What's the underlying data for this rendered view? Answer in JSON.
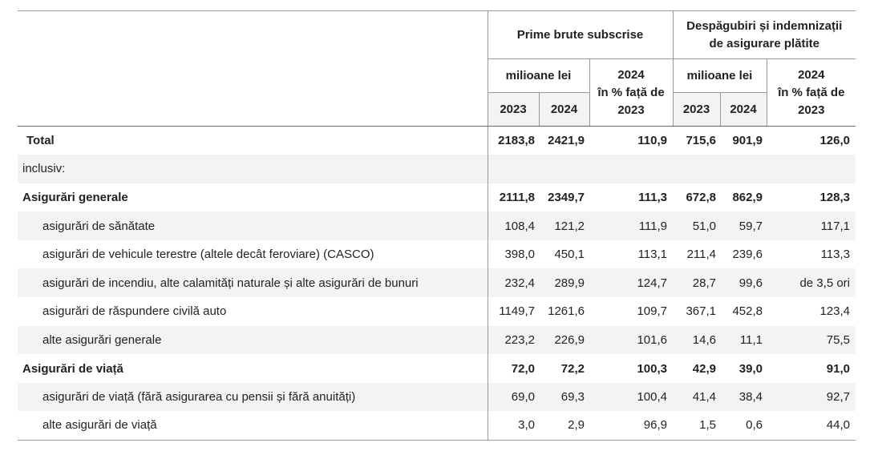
{
  "header": {
    "group1": "Prime brute subscrise",
    "group2": "Despăgubiri și indemnizații de asigurare plătite",
    "unit": "milioane lei",
    "pct_line1": "2024",
    "pct_line2": "în % față de",
    "pct_line3": "2023",
    "year1": "2023",
    "year2": "2024"
  },
  "rows": [
    {
      "label": "Total",
      "values": [
        "2183,8",
        "2421,9",
        "110,9",
        "715,6",
        "901,9",
        "126,0"
      ],
      "bold": true
    },
    {
      "label": "inclusiv:",
      "values": [
        "",
        "",
        "",
        "",
        "",
        ""
      ]
    },
    {
      "label": "Asigurări generale",
      "values": [
        "2111,8",
        "2349,7",
        "111,3",
        "672,8",
        "862,9",
        "128,3"
      ],
      "bold": true
    },
    {
      "label": "asigurări de sănătate",
      "values": [
        "108,4",
        "121,2",
        "111,9",
        "51,0",
        "59,7",
        "117,1"
      ]
    },
    {
      "label": "asigurări de vehicule terestre (altele decât feroviare) (CASCO)",
      "values": [
        "398,0",
        "450,1",
        "113,1",
        "211,4",
        "239,6",
        "113,3"
      ]
    },
    {
      "label": "asigurări de incendiu, alte calamități naturale și alte asigurări de bunuri",
      "values": [
        "232,4",
        "289,9",
        "124,7",
        "28,7",
        "99,6",
        "de 3,5 ori"
      ]
    },
    {
      "label": "asigurări de răspundere civilă auto",
      "values": [
        "1149,7",
        "1261,6",
        "109,7",
        "367,1",
        "452,8",
        "123,4"
      ]
    },
    {
      "label": "alte asigurări generale",
      "values": [
        "223,2",
        "226,9",
        "101,6",
        "14,6",
        "11,1",
        "75,5"
      ]
    },
    {
      "label": "Asigurări de viață",
      "values": [
        "72,0",
        "72,2",
        "100,3",
        "42,9",
        "39,0",
        "91,0"
      ],
      "bold": true
    },
    {
      "label": "asigurări de viață (fără asigurarea cu pensii și fără anuități)",
      "values": [
        "69,0",
        "69,3",
        "100,4",
        "41,4",
        "38,4",
        "92,7"
      ]
    },
    {
      "label": "alte asigurări de viață",
      "values": [
        "3,0",
        "2,9",
        "96,9",
        "1,5",
        "0,6",
        "44,0"
      ]
    }
  ]
}
